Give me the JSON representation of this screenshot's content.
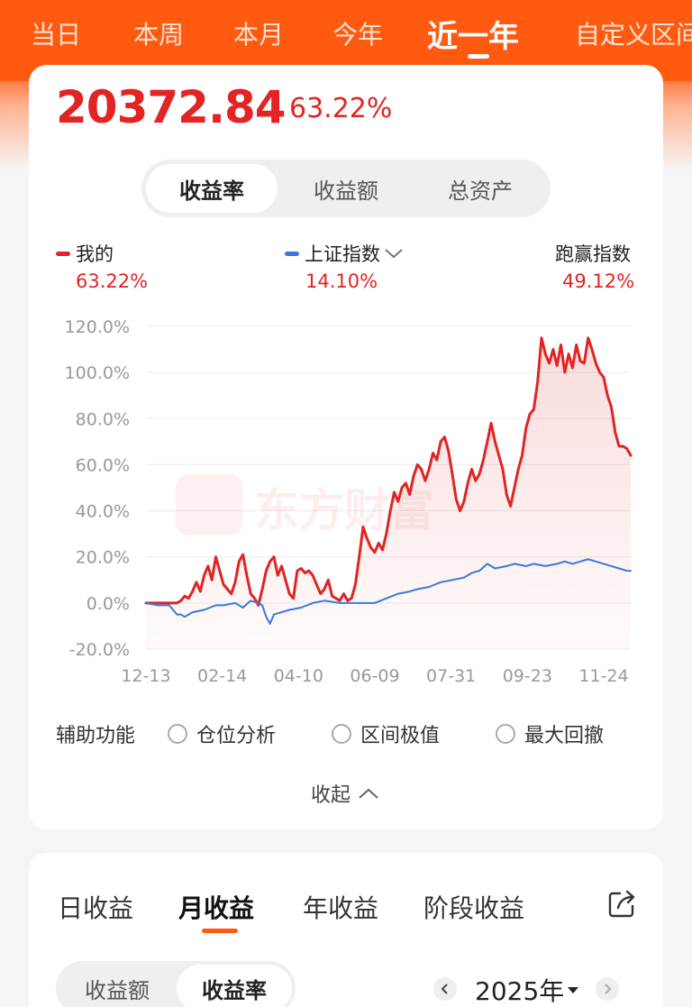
{
  "period_tabs": [
    "当日",
    "本周",
    "本月",
    "今年",
    "近一年",
    "自定义区间"
  ],
  "active_period": "近一年",
  "summary": {
    "amount": "20372.84",
    "rate": "63.22%"
  },
  "metric_tabs": [
    "收益率",
    "收益额",
    "总资产"
  ],
  "legend": {
    "mine": {
      "label": "我的",
      "value": "63.22%"
    },
    "index": {
      "label": "上证指数",
      "value": "14.10%"
    },
    "beat": {
      "label": "跑赢指数",
      "value": "49.12%"
    }
  },
  "watermark": "东方财富",
  "colors": {
    "accent": "#ff5a0f",
    "mine_line": "#e02424",
    "index_line": "#3a78e0",
    "positive": "#e32424"
  },
  "chart_data": {
    "type": "line",
    "x_labels": [
      "12-13",
      "02-14",
      "04-10",
      "06-09",
      "07-31",
      "09-23",
      "11-24"
    ],
    "y_ticks": [
      "120.0%",
      "100.0%",
      "80.0%",
      "60.0%",
      "40.0%",
      "20.0%",
      "0.0%",
      "-20.0%"
    ],
    "ylim": [
      -20,
      120
    ],
    "grid": true,
    "series": [
      {
        "name": "我的",
        "color": "#e02424",
        "x": [
          0,
          2,
          4,
          6,
          8,
          10,
          12,
          14,
          16,
          18,
          20,
          22,
          24,
          26,
          28,
          30,
          32,
          34,
          36,
          38,
          40,
          42,
          44,
          46,
          48,
          50,
          52,
          54,
          56,
          58,
          60,
          62,
          64,
          66,
          68,
          70,
          72,
          74,
          76,
          78,
          80,
          82,
          84,
          86,
          88,
          90,
          92,
          94,
          96,
          98,
          100,
          102,
          104,
          106,
          108,
          110,
          112,
          114,
          116,
          118,
          120,
          122,
          124,
          126,
          128,
          130,
          132,
          134,
          136,
          138,
          140,
          142,
          144,
          146,
          148,
          150,
          152,
          154,
          156,
          158,
          160,
          162,
          164,
          166,
          168,
          170,
          172,
          174,
          176,
          178,
          180,
          182,
          184,
          186,
          188,
          190,
          192,
          194,
          196,
          198,
          200,
          202,
          204,
          206,
          208,
          210,
          212,
          214,
          216,
          218,
          220,
          222,
          224,
          226,
          228,
          230,
          232,
          234,
          236,
          238,
          240,
          242,
          244,
          246,
          248,
          250
        ],
        "values": [
          0,
          0,
          0,
          0,
          0,
          0,
          0,
          0,
          0,
          1,
          3,
          2,
          5,
          9,
          5,
          12,
          16,
          10,
          20,
          14,
          8,
          6,
          4,
          9,
          18,
          21,
          12,
          4,
          2,
          -1,
          6,
          14,
          18,
          20,
          12,
          16,
          10,
          4,
          2,
          14,
          15,
          13,
          14,
          12,
          8,
          4,
          6,
          10,
          3,
          2,
          1,
          4,
          1,
          2,
          8,
          20,
          33,
          28,
          24,
          22,
          26,
          23,
          30,
          40,
          48,
          44,
          50,
          52,
          47,
          55,
          60,
          58,
          53,
          58,
          65,
          62,
          70,
          72,
          66,
          56,
          45,
          40,
          44,
          52,
          58,
          53,
          56,
          62,
          70,
          78,
          70,
          64,
          58,
          47,
          42,
          50,
          58,
          64,
          76,
          82,
          84,
          96,
          115,
          108,
          104,
          110,
          103,
          112,
          100,
          108,
          102,
          112,
          105,
          104,
          115,
          110,
          104,
          100,
          98,
          90,
          85,
          74,
          68,
          68,
          67,
          64
        ]
      },
      {
        "name": "上证指数",
        "color": "#3a78e0",
        "x": [
          0,
          6,
          12,
          14,
          16,
          18,
          20,
          24,
          30,
          36,
          40,
          46,
          50,
          54,
          58,
          60,
          62,
          64,
          66,
          70,
          74,
          80,
          86,
          92,
          100,
          110,
          118,
          124,
          130,
          136,
          140,
          146,
          152,
          158,
          164,
          168,
          172,
          176,
          180,
          186,
          190,
          196,
          200,
          206,
          212,
          216,
          220,
          224,
          228,
          232,
          236,
          240,
          244,
          248,
          250
        ],
        "values": [
          0,
          -1,
          -1,
          -3,
          -5,
          -5,
          -6,
          -4,
          -3,
          -1,
          -1,
          0,
          -2,
          1,
          0,
          -1,
          -6,
          -9,
          -5,
          -4,
          -3,
          -2,
          0,
          1,
          0,
          0,
          0,
          2,
          4,
          5,
          6,
          7,
          9,
          10,
          11,
          13,
          14,
          17,
          15,
          16,
          17,
          16,
          17,
          16,
          17,
          18,
          17,
          18,
          19,
          18,
          17,
          16,
          15,
          14,
          14
        ]
      }
    ]
  },
  "aux": {
    "title": "辅助功能",
    "options": [
      "仓位分析",
      "区间极值",
      "最大回撤"
    ]
  },
  "collapse_label": "收起",
  "earning_tabs": [
    "日收益",
    "月收益",
    "年收益",
    "阶段收益"
  ],
  "active_earning_tab": "月收益",
  "earning_seg": [
    "收益额",
    "收益率"
  ],
  "year": "2025年"
}
